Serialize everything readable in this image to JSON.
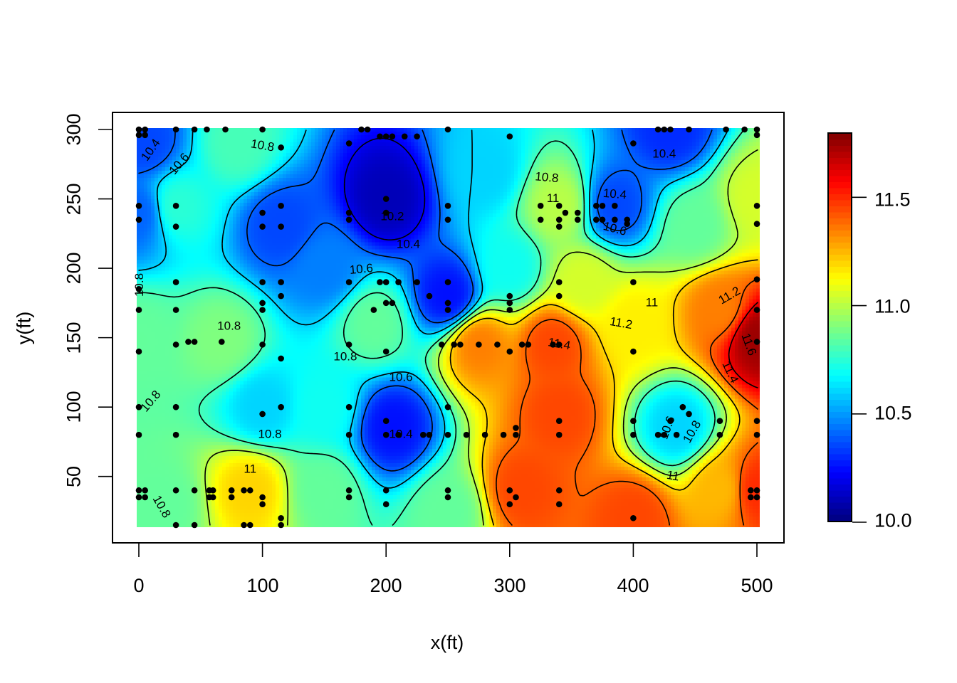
{
  "chart_data": {
    "type": "heatmap",
    "title": "",
    "xlabel": "x(ft)",
    "ylabel": "y(ft)",
    "xlim": [
      0,
      500
    ],
    "ylim": [
      15,
      300
    ],
    "x_ticks": [
      "0",
      "100",
      "200",
      "300",
      "400",
      "500"
    ],
    "y_ticks": [
      "50",
      "100",
      "150",
      "200",
      "250",
      "300"
    ],
    "colorbar": {
      "palette": "jet",
      "range": [
        10.0,
        11.8
      ],
      "ticks": [
        "10.0",
        "10.5",
        "11.0",
        "11.5"
      ],
      "colors": [
        "#00007F",
        "#0000FF",
        "#007FFF",
        "#00FFFF",
        "#7FFF7F",
        "#FFFF00",
        "#FF7F00",
        "#FF0000",
        "#7F0000"
      ]
    },
    "contour_levels": [
      10.2,
      10.4,
      10.6,
      10.8,
      11.0,
      11.2,
      11.4,
      11.6
    ],
    "contour_labels": [
      {
        "text": "10.4",
        "x": 10,
        "y": 285,
        "rot": -55
      },
      {
        "text": "10.6",
        "x": 33,
        "y": 275,
        "rot": -50
      },
      {
        "text": "10.8",
        "x": 100,
        "y": 288,
        "rot": 10
      },
      {
        "text": "10.2",
        "x": 205,
        "y": 237,
        "rot": 0
      },
      {
        "text": "10.4",
        "x": 218,
        "y": 217,
        "rot": 0
      },
      {
        "text": "10.6",
        "x": 180,
        "y": 199,
        "rot": -5
      },
      {
        "text": "10.8",
        "x": 330,
        "y": 265,
        "rot": 5
      },
      {
        "text": "11",
        "x": 335,
        "y": 250,
        "rot": 0
      },
      {
        "text": "10.4",
        "x": 385,
        "y": 253,
        "rot": 5
      },
      {
        "text": "10.6",
        "x": 385,
        "y": 228,
        "rot": 15
      },
      {
        "text": "10.4",
        "x": 425,
        "y": 282,
        "rot": 0
      },
      {
        "text": "11",
        "x": 415,
        "y": 175,
        "rot": 0
      },
      {
        "text": "11.2",
        "x": 390,
        "y": 160,
        "rot": 10
      },
      {
        "text": "11.2",
        "x": 478,
        "y": 180,
        "rot": -30
      },
      {
        "text": "11.6",
        "x": 493,
        "y": 145,
        "rot": 70
      },
      {
        "text": "11.4",
        "x": 478,
        "y": 125,
        "rot": 65
      },
      {
        "text": "10.8",
        "x": 1,
        "y": 188,
        "rot": -90
      },
      {
        "text": "10.8",
        "x": 73,
        "y": 158,
        "rot": 0
      },
      {
        "text": "10.8",
        "x": 167,
        "y": 136,
        "rot": 0
      },
      {
        "text": "10.6",
        "x": 212,
        "y": 121,
        "rot": 0
      },
      {
        "text": "10.4",
        "x": 212,
        "y": 80,
        "rot": 0
      },
      {
        "text": "10.8",
        "x": 106,
        "y": 80,
        "rot": 0
      },
      {
        "text": "10.8",
        "x": 10,
        "y": 104,
        "rot": -50
      },
      {
        "text": "11",
        "x": 90,
        "y": 55,
        "rot": 0
      },
      {
        "text": "10.8",
        "x": 18,
        "y": 28,
        "rot": 60
      },
      {
        "text": "11.4",
        "x": 340,
        "y": 145,
        "rot": 10
      },
      {
        "text": "10.6",
        "x": 428,
        "y": 85,
        "rot": -70
      },
      {
        "text": "10.8",
        "x": 448,
        "y": 82,
        "rot": -60
      },
      {
        "text": "11",
        "x": 432,
        "y": 50,
        "rot": 10
      }
    ],
    "sample_points": [
      [
        0,
        300
      ],
      [
        5,
        300
      ],
      [
        0,
        296
      ],
      [
        5,
        296
      ],
      [
        30,
        300
      ],
      [
        45,
        300
      ],
      [
        55,
        300
      ],
      [
        70,
        300
      ],
      [
        100,
        300
      ],
      [
        115,
        287
      ],
      [
        0,
        245
      ],
      [
        0,
        235
      ],
      [
        30,
        245
      ],
      [
        30,
        230
      ],
      [
        100,
        240
      ],
      [
        100,
        230
      ],
      [
        115,
        245
      ],
      [
        115,
        230
      ],
      [
        170,
        290
      ],
      [
        180,
        300
      ],
      [
        185,
        300
      ],
      [
        195,
        295
      ],
      [
        200,
        295
      ],
      [
        205,
        295
      ],
      [
        215,
        295
      ],
      [
        225,
        295
      ],
      [
        250,
        300
      ],
      [
        300,
        295
      ],
      [
        200,
        250
      ],
      [
        200,
        240
      ],
      [
        170,
        240
      ],
      [
        170,
        235
      ],
      [
        250,
        245
      ],
      [
        250,
        235
      ],
      [
        325,
        245
      ],
      [
        340,
        245
      ],
      [
        345,
        240
      ],
      [
        325,
        235
      ],
      [
        340,
        235
      ],
      [
        340,
        230
      ],
      [
        355,
        240
      ],
      [
        355,
        235
      ],
      [
        370,
        245
      ],
      [
        375,
        245
      ],
      [
        385,
        245
      ],
      [
        370,
        235
      ],
      [
        375,
        235
      ],
      [
        385,
        235
      ],
      [
        395,
        235
      ],
      [
        395,
        232
      ],
      [
        400,
        290
      ],
      [
        420,
        300
      ],
      [
        425,
        300
      ],
      [
        430,
        300
      ],
      [
        445,
        300
      ],
      [
        475,
        300
      ],
      [
        490,
        300
      ],
      [
        500,
        300
      ],
      [
        500,
        296
      ],
      [
        500,
        245
      ],
      [
        500,
        232
      ],
      [
        0,
        185
      ],
      [
        0,
        170
      ],
      [
        30,
        190
      ],
      [
        30,
        170
      ],
      [
        100,
        190
      ],
      [
        115,
        190
      ],
      [
        100,
        175
      ],
      [
        115,
        180
      ],
      [
        100,
        170
      ],
      [
        170,
        190
      ],
      [
        195,
        190
      ],
      [
        200,
        190
      ],
      [
        210,
        190
      ],
      [
        225,
        190
      ],
      [
        235,
        180
      ],
      [
        200,
        175
      ],
      [
        205,
        175
      ],
      [
        190,
        170
      ],
      [
        250,
        190
      ],
      [
        250,
        175
      ],
      [
        250,
        170
      ],
      [
        300,
        180
      ],
      [
        300,
        175
      ],
      [
        300,
        170
      ],
      [
        340,
        190
      ],
      [
        340,
        180
      ],
      [
        400,
        190
      ],
      [
        500,
        192
      ],
      [
        0,
        140
      ],
      [
        30,
        145
      ],
      [
        40,
        147
      ],
      [
        45,
        147
      ],
      [
        67,
        147
      ],
      [
        100,
        145
      ],
      [
        115,
        135
      ],
      [
        170,
        145
      ],
      [
        200,
        140
      ],
      [
        245,
        145
      ],
      [
        255,
        145
      ],
      [
        260,
        145
      ],
      [
        275,
        145
      ],
      [
        290,
        145
      ],
      [
        300,
        140
      ],
      [
        310,
        145
      ],
      [
        315,
        145
      ],
      [
        335,
        145
      ],
      [
        340,
        145
      ],
      [
        400,
        140
      ],
      [
        500,
        170
      ],
      [
        500,
        147
      ],
      [
        0,
        100
      ],
      [
        30,
        100
      ],
      [
        0,
        80
      ],
      [
        30,
        80
      ],
      [
        100,
        95
      ],
      [
        115,
        100
      ],
      [
        170,
        100
      ],
      [
        170,
        80
      ],
      [
        200,
        90
      ],
      [
        200,
        80
      ],
      [
        210,
        80
      ],
      [
        230,
        80
      ],
      [
        235,
        80
      ],
      [
        250,
        100
      ],
      [
        250,
        80
      ],
      [
        265,
        80
      ],
      [
        280,
        80
      ],
      [
        295,
        80
      ],
      [
        305,
        80
      ],
      [
        305,
        85
      ],
      [
        340,
        80
      ],
      [
        340,
        90
      ],
      [
        400,
        80
      ],
      [
        400,
        90
      ],
      [
        420,
        80
      ],
      [
        425,
        80
      ],
      [
        430,
        90
      ],
      [
        435,
        80
      ],
      [
        440,
        100
      ],
      [
        445,
        95
      ],
      [
        470,
        90
      ],
      [
        470,
        80
      ],
      [
        500,
        80
      ],
      [
        500,
        90
      ],
      [
        0,
        40
      ],
      [
        5,
        40
      ],
      [
        0,
        35
      ],
      [
        5,
        35
      ],
      [
        30,
        40
      ],
      [
        45,
        40
      ],
      [
        57,
        40
      ],
      [
        60,
        40
      ],
      [
        57,
        35
      ],
      [
        60,
        35
      ],
      [
        75,
        40
      ],
      [
        75,
        35
      ],
      [
        85,
        40
      ],
      [
        90,
        40
      ],
      [
        100,
        35
      ],
      [
        100,
        30
      ],
      [
        30,
        15
      ],
      [
        45,
        15
      ],
      [
        85,
        15
      ],
      [
        90,
        15
      ],
      [
        115,
        20
      ],
      [
        115,
        15
      ],
      [
        170,
        40
      ],
      [
        170,
        35
      ],
      [
        200,
        40
      ],
      [
        200,
        30
      ],
      [
        250,
        40
      ],
      [
        250,
        35
      ],
      [
        300,
        40
      ],
      [
        305,
        35
      ],
      [
        300,
        30
      ],
      [
        340,
        40
      ],
      [
        340,
        30
      ],
      [
        400,
        20
      ],
      [
        495,
        40
      ],
      [
        500,
        40
      ],
      [
        495,
        35
      ],
      [
        500,
        35
      ]
    ],
    "field_seeds": [
      [
        5,
        290,
        10.35
      ],
      [
        30,
        245,
        10.75
      ],
      [
        80,
        290,
        10.8
      ],
      [
        0,
        240,
        10.4
      ],
      [
        115,
        230,
        10.35
      ],
      [
        200,
        250,
        10.1
      ],
      [
        250,
        180,
        10.25
      ],
      [
        190,
        160,
        10.85
      ],
      [
        205,
        85,
        10.25
      ],
      [
        340,
        245,
        11.0
      ],
      [
        385,
        245,
        10.35
      ],
      [
        430,
        300,
        10.3
      ],
      [
        500,
        250,
        11.05
      ],
      [
        275,
        145,
        11.35
      ],
      [
        335,
        145,
        11.45
      ],
      [
        340,
        95,
        11.45
      ],
      [
        310,
        40,
        11.45
      ],
      [
        400,
        20,
        11.45
      ],
      [
        435,
        85,
        10.6
      ],
      [
        500,
        150,
        11.75
      ],
      [
        500,
        40,
        11.5
      ],
      [
        90,
        40,
        11.2
      ],
      [
        67,
        147,
        10.9
      ],
      [
        0,
        150,
        10.85
      ],
      [
        100,
        100,
        10.6
      ],
      [
        20,
        30,
        10.85
      ],
      [
        150,
        40,
        10.85
      ],
      [
        150,
        200,
        10.45
      ],
      [
        150,
        100,
        10.7
      ],
      [
        250,
        25,
        10.85
      ],
      [
        470,
        170,
        11.35
      ],
      [
        470,
        40,
        11.25
      ],
      [
        300,
        200,
        10.7
      ],
      [
        400,
        160,
        11.15
      ],
      [
        360,
        190,
        11.05
      ],
      [
        450,
        230,
        10.85
      ],
      [
        280,
        270,
        10.6
      ]
    ]
  }
}
